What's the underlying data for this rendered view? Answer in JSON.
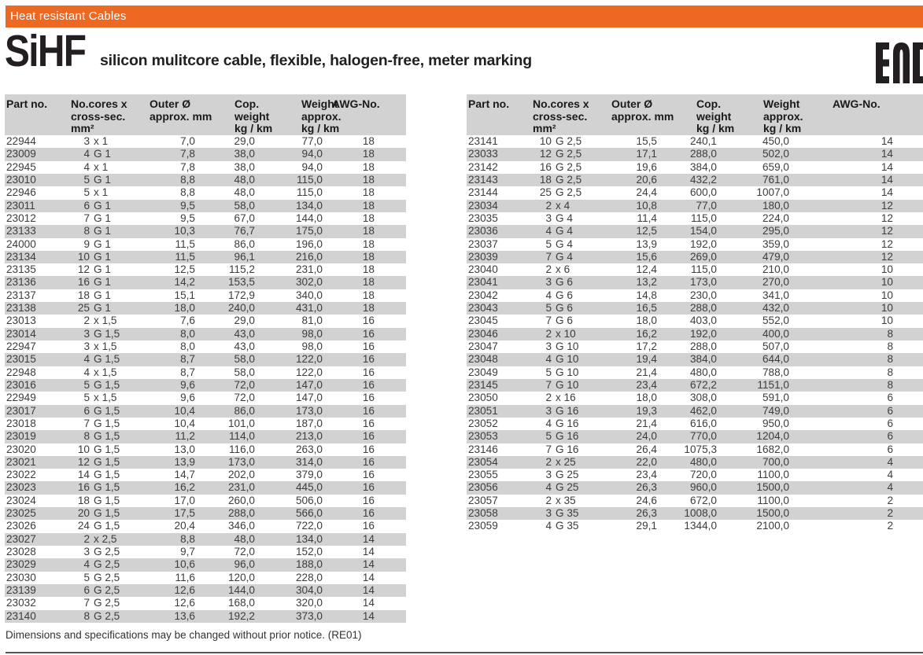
{
  "banner": {
    "label": "Heat resistant Cables"
  },
  "title": {
    "code": "SiHF",
    "description": "silicon mulitcore cable, flexible, halogen-free, meter marking"
  },
  "eac_mark": {
    "name": "EAC"
  },
  "colors": {
    "accent_orange": "#EC6823",
    "stripe_gray": "#D2D2D2",
    "text_dark": "#3D3D3D"
  },
  "table": {
    "headers": {
      "part": "Part no.",
      "cores_l1": "No.cores x",
      "cores_l2": "cross-sec.",
      "cores_l3": "mm²",
      "outer_l1": "Outer Ø",
      "outer_l2": "approx. mm",
      "cop_l1": "Cop.",
      "cop_l2": "weight",
      "cop_l3": "kg / km",
      "weight_l1": "Weight",
      "weight_l2": "approx.",
      "weight_l3": "kg / km",
      "awg": "AWG-No."
    }
  },
  "left_table": {
    "rows": [
      [
        "22944",
        "3 x 1",
        "7,0",
        "29,0",
        "77,0",
        "18"
      ],
      [
        "23009",
        "4 G 1",
        "7,8",
        "38,0",
        "94,0",
        "18"
      ],
      [
        "22945",
        "4 x 1",
        "7,8",
        "38,0",
        "94,0",
        "18"
      ],
      [
        "23010",
        "5 G 1",
        "8,8",
        "48,0",
        "115,0",
        "18"
      ],
      [
        "22946",
        "5 x 1",
        "8,8",
        "48,0",
        "115,0",
        "18"
      ],
      [
        "23011",
        "6 G 1",
        "9,5",
        "58,0",
        "134,0",
        "18"
      ],
      [
        "23012",
        "7 G 1",
        "9,5",
        "67,0",
        "144,0",
        "18"
      ],
      [
        "23133",
        "8 G 1",
        "10,3",
        "76,7",
        "175,0",
        "18"
      ],
      [
        "24000",
        "9 G 1",
        "11,5",
        "86,0",
        "196,0",
        "18"
      ],
      [
        "23134",
        "10 G 1",
        "11,5",
        "96,1",
        "216,0",
        "18"
      ],
      [
        "23135",
        "12 G 1",
        "12,5",
        "115,2",
        "231,0",
        "18"
      ],
      [
        "23136",
        "16 G 1",
        "14,2",
        "153,5",
        "302,0",
        "18"
      ],
      [
        "23137",
        "18 G 1",
        "15,1",
        "172,9",
        "340,0",
        "18"
      ],
      [
        "23138",
        "25 G 1",
        "18,0",
        "240,0",
        "431,0",
        "18"
      ],
      [
        "23013",
        "2 x 1,5",
        "7,6",
        "29,0",
        "81,0",
        "16"
      ],
      [
        "23014",
        "3 G 1,5",
        "8,0",
        "43,0",
        "98,0",
        "16"
      ],
      [
        "22947",
        "3 x 1,5",
        "8,0",
        "43,0",
        "98,0",
        "16"
      ],
      [
        "23015",
        "4 G 1,5",
        "8,7",
        "58,0",
        "122,0",
        "16"
      ],
      [
        "22948",
        "4 x 1,5",
        "8,7",
        "58,0",
        "122,0",
        "16"
      ],
      [
        "23016",
        "5 G 1,5",
        "9,6",
        "72,0",
        "147,0",
        "16"
      ],
      [
        "22949",
        "5 x 1,5",
        "9,6",
        "72,0",
        "147,0",
        "16"
      ],
      [
        "23017",
        "6 G 1,5",
        "10,4",
        "86,0",
        "173,0",
        "16"
      ],
      [
        "23018",
        "7 G 1,5",
        "10,4",
        "101,0",
        "187,0",
        "16"
      ],
      [
        "23019",
        "8 G 1,5",
        "11,2",
        "114,0",
        "213,0",
        "16"
      ],
      [
        "23020",
        "10 G 1,5",
        "13,0",
        "116,0",
        "263,0",
        "16"
      ],
      [
        "23021",
        "12 G 1,5",
        "13,9",
        "173,0",
        "314,0",
        "16"
      ],
      [
        "23022",
        "14 G 1,5",
        "14,7",
        "202,0",
        "379,0",
        "16"
      ],
      [
        "23023",
        "16 G 1,5",
        "16,2",
        "231,0",
        "445,0",
        "16"
      ],
      [
        "23024",
        "18 G 1,5",
        "17,0",
        "260,0",
        "506,0",
        "16"
      ],
      [
        "23025",
        "20 G 1,5",
        "17,5",
        "288,0",
        "566,0",
        "16"
      ],
      [
        "23026",
        "24 G 1,5",
        "20,4",
        "346,0",
        "722,0",
        "16"
      ],
      [
        "23027",
        "2 x 2,5",
        "8,8",
        "48,0",
        "134,0",
        "14"
      ],
      [
        "23028",
        "3 G 2,5",
        "9,7",
        "72,0",
        "152,0",
        "14"
      ],
      [
        "23029",
        "4 G 2,5",
        "10,6",
        "96,0",
        "188,0",
        "14"
      ],
      [
        "23030",
        "5 G 2,5",
        "11,6",
        "120,0",
        "228,0",
        "14"
      ],
      [
        "23139",
        "6 G 2,5",
        "12,6",
        "144,0",
        "304,0",
        "14"
      ],
      [
        "23032",
        "7 G 2,5",
        "12,6",
        "168,0",
        "320,0",
        "14"
      ],
      [
        "23140",
        "8 G 2,5",
        "13,6",
        "192,2",
        "373,0",
        "14"
      ]
    ]
  },
  "right_table": {
    "rows": [
      [
        "23141",
        "10 G 2,5",
        "15,5",
        "240,1",
        "450,0",
        "14"
      ],
      [
        "23033",
        "12 G 2,5",
        "17,1",
        "288,0",
        "502,0",
        "14"
      ],
      [
        "23142",
        "16 G 2,5",
        "19,6",
        "384,0",
        "659,0",
        "14"
      ],
      [
        "23143",
        "18 G 2,5",
        "20,6",
        "432,2",
        "761,0",
        "14"
      ],
      [
        "23144",
        "25 G 2,5",
        "24,4",
        "600,0",
        "1007,0",
        "14"
      ],
      [
        "23034",
        "2 x 4",
        "10,8",
        "77,0",
        "180,0",
        "12"
      ],
      [
        "23035",
        "3 G 4",
        "11,4",
        "115,0",
        "224,0",
        "12"
      ],
      [
        "23036",
        "4 G 4",
        "12,5",
        "154,0",
        "295,0",
        "12"
      ],
      [
        "23037",
        "5 G 4",
        "13,9",
        "192,0",
        "359,0",
        "12"
      ],
      [
        "23039",
        "7 G 4",
        "15,6",
        "269,0",
        "479,0",
        "12"
      ],
      [
        "23040",
        "2 x 6",
        "12,4",
        "115,0",
        "210,0",
        "10"
      ],
      [
        "23041",
        "3 G 6",
        "13,2",
        "173,0",
        "270,0",
        "10"
      ],
      [
        "23042",
        "4 G 6",
        "14,8",
        "230,0",
        "341,0",
        "10"
      ],
      [
        "23043",
        "5 G 6",
        "16,5",
        "288,0",
        "432,0",
        "10"
      ],
      [
        "23045",
        "7 G 6",
        "18,0",
        "403,0",
        "552,0",
        "10"
      ],
      [
        "23046",
        "2 x 10",
        "16,2",
        "192,0",
        "400,0",
        "8"
      ],
      [
        "23047",
        "3 G 10",
        "17,2",
        "288,0",
        "507,0",
        "8"
      ],
      [
        "23048",
        "4 G 10",
        "19,4",
        "384,0",
        "644,0",
        "8"
      ],
      [
        "23049",
        "5 G 10",
        "21,4",
        "480,0",
        "788,0",
        "8"
      ],
      [
        "23145",
        "7 G 10",
        "23,4",
        "672,2",
        "1151,0",
        "8"
      ],
      [
        "23050",
        "2 x 16",
        "18,0",
        "308,0",
        "591,0",
        "6"
      ],
      [
        "23051",
        "3 G 16",
        "19,3",
        "462,0",
        "749,0",
        "6"
      ],
      [
        "23052",
        "4 G 16",
        "21,4",
        "616,0",
        "950,0",
        "6"
      ],
      [
        "23053",
        "5 G 16",
        "24,0",
        "770,0",
        "1204,0",
        "6"
      ],
      [
        "23146",
        "7 G 16",
        "26,4",
        "1075,3",
        "1682,0",
        "6"
      ],
      [
        "23054",
        "2 x 25",
        "22,0",
        "480,0",
        "700,0",
        "4"
      ],
      [
        "23055",
        "3 G 25",
        "23,4",
        "720,0",
        "1100,0",
        "4"
      ],
      [
        "23056",
        "4 G 25",
        "26,3",
        "960,0",
        "1500,0",
        "4"
      ],
      [
        "23057",
        "2 x 35",
        "24,6",
        "672,0",
        "1100,0",
        "2"
      ],
      [
        "23058",
        "3 G 35",
        "26,3",
        "1008,0",
        "1500,0",
        "2"
      ],
      [
        "23059",
        "4 G 35",
        "29,1",
        "1344,0",
        "2100,0",
        "2"
      ]
    ]
  },
  "footer": {
    "note": "Dimensions and specifications may be changed without prior notice. (RE01)"
  }
}
